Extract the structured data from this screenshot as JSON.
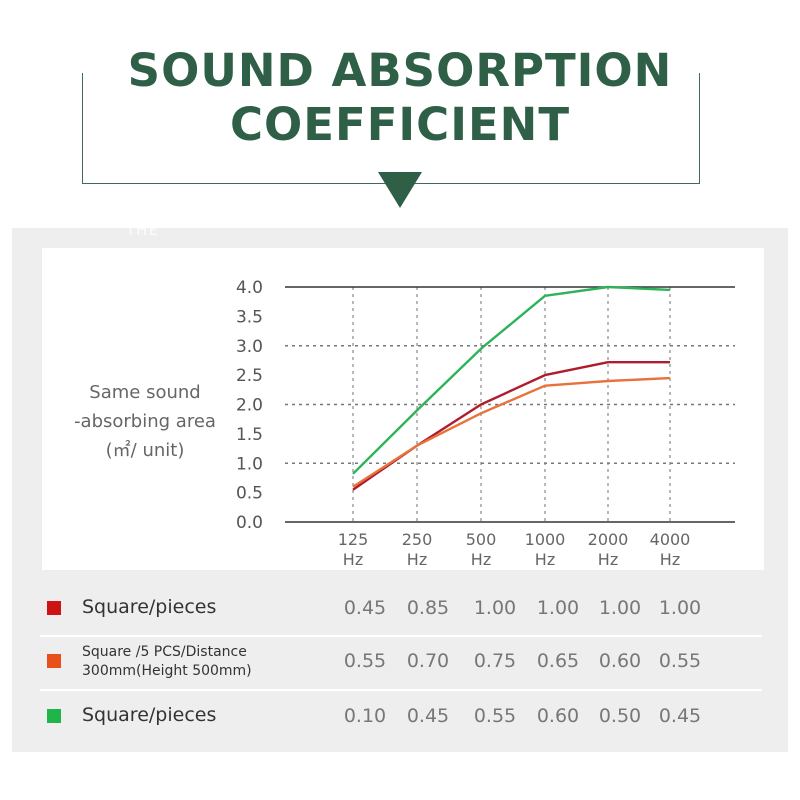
{
  "header": {
    "title_line1": "SOUND ABSORPTION",
    "title_line2": "COEFFICIENT",
    "faint_text": "THE"
  },
  "colors": {
    "title_green": "#2f5f46",
    "dark_red": "#b01c2e",
    "orange": "#e8733a",
    "green": "#2fb35a"
  },
  "y_axis_label": [
    "Same sound",
    "-absorbing area",
    "(㎡/ unit)"
  ],
  "chart_data": {
    "type": "line",
    "x": [
      "125 Hz",
      "250 Hz",
      "500 Hz",
      "1000 Hz",
      "2000 Hz",
      "4000 Hz"
    ],
    "x_ticks": [
      [
        "125",
        "Hz"
      ],
      [
        "250",
        "Hz"
      ],
      [
        "500",
        "Hz"
      ],
      [
        "1000",
        "Hz"
      ],
      [
        "2000",
        "Hz"
      ],
      [
        "4000",
        "Hz"
      ]
    ],
    "y_ticks": [
      "0.0",
      "0.5",
      "1.0",
      "1.5",
      "2.0",
      "2.5",
      "3.0",
      "3.5",
      "4.0"
    ],
    "ylim": [
      0,
      4
    ],
    "grid": "dotted",
    "series": [
      {
        "name": "Square/pieces",
        "color": "#b01c2e",
        "values": [
          0.55,
          1.3,
          2.0,
          2.5,
          2.72,
          2.72
        ]
      },
      {
        "name": "Square /5 PCS/Distance 300mm(Height 500mm)",
        "color": "#e8733a",
        "values": [
          0.6,
          1.3,
          1.85,
          2.32,
          2.4,
          2.45
        ]
      },
      {
        "name": "Square/pieces",
        "color": "#2fb35a",
        "values": [
          0.82,
          1.9,
          2.95,
          3.85,
          4.0,
          3.95
        ]
      }
    ]
  },
  "table": {
    "rows": [
      {
        "color": "#cc1414",
        "label_lines": [
          "Square/pieces"
        ],
        "values": [
          "0.45",
          "0.85",
          "1.00",
          "1.00",
          "1.00",
          "1.00"
        ]
      },
      {
        "color": "#e8501a",
        "label_lines": [
          "Square /5 PCS/Distance",
          "300mm(Height 500mm)"
        ],
        "values": [
          "0.55",
          "0.70",
          "0.75",
          "0.65",
          "0.60",
          "0.55"
        ]
      },
      {
        "color": "#1fb548",
        "label_lines": [
          "Square/pieces"
        ],
        "values": [
          "0.10",
          "0.45",
          "0.55",
          "0.60",
          "0.50",
          "0.45"
        ]
      }
    ]
  }
}
